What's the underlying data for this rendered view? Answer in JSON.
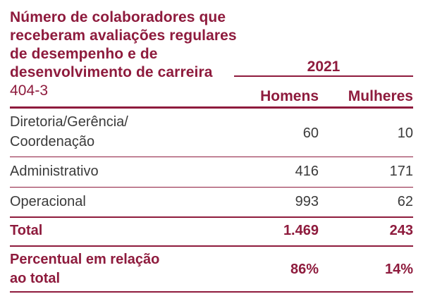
{
  "title": {
    "text": "Número de colaboradores que receberam avaliações regulares de desempenho e de desenvolvimento de carreira",
    "code": "404-3"
  },
  "table": {
    "year": "2021",
    "columns": [
      "Homens",
      "Mulheres"
    ],
    "rows": [
      {
        "label_line1": "Diretoria/Gerência/",
        "label_line2": "Coordenação",
        "homens": "60",
        "mulheres": "10"
      },
      {
        "label": "Administrativo",
        "homens": "416",
        "mulheres": "171"
      },
      {
        "label": "Operacional",
        "homens": "993",
        "mulheres": "62"
      }
    ],
    "total": {
      "label": "Total",
      "homens": "1.469",
      "mulheres": "243"
    },
    "percent": {
      "label_line1": "Percentual em relação",
      "label_line2": "ao total",
      "homens": "86%",
      "mulheres": "14%"
    }
  }
}
